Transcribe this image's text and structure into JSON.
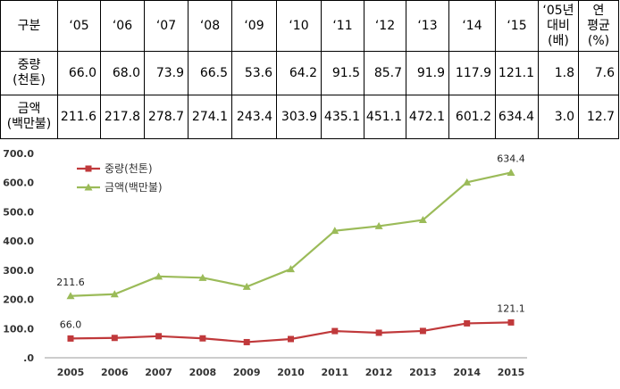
{
  "table": {
    "corner": "구분",
    "columns": [
      "‘05",
      "‘06",
      "‘07",
      "‘08",
      "‘09",
      "‘10",
      "‘11",
      "‘12",
      "‘13",
      "‘14",
      "‘15"
    ],
    "ratio_col": [
      "‘05년",
      "대비",
      "(배)"
    ],
    "growth_col": [
      "연",
      "평균",
      "(%)"
    ],
    "rows": [
      {
        "label": [
          "중량",
          "(천톤)"
        ],
        "values": [
          "66.0",
          "68.0",
          "73.9",
          "66.5",
          "53.6",
          "64.2",
          "91.5",
          "85.7",
          "91.9",
          "117.9",
          "121.1"
        ],
        "ratio": "1.8",
        "growth": "7.6"
      },
      {
        "label": [
          "금액",
          "(백만불)"
        ],
        "values": [
          "211.6",
          "217.8",
          "278.7",
          "274.1",
          "243.4",
          "303.9",
          "435.1",
          "451.1",
          "472.1",
          "601.2",
          "634.4"
        ],
        "ratio": "3.0",
        "growth": "12.7"
      }
    ]
  },
  "chart_data": {
    "type": "line",
    "x": [
      "2005",
      "2006",
      "2007",
      "2008",
      "2009",
      "2010",
      "2011",
      "2012",
      "2013",
      "2014",
      "2015"
    ],
    "ylim": [
      0,
      700
    ],
    "yticks": [
      "700.0",
      "600.0",
      "500.0",
      "400.0",
      "300.0",
      "200.0",
      "100.0",
      ".0"
    ],
    "ytick_values": [
      700,
      600,
      500,
      400,
      300,
      200,
      100,
      0
    ],
    "grid": false,
    "legend_position": "top-left",
    "series": [
      {
        "name": "중량(천톤)",
        "color": "#c0393b",
        "marker": "square",
        "values": [
          66.0,
          68.0,
          73.9,
          66.5,
          53.6,
          64.2,
          91.5,
          85.7,
          91.9,
          117.9,
          121.1
        ]
      },
      {
        "name": "금액(백만불)",
        "color": "#9bbb59",
        "marker": "triangle",
        "values": [
          211.6,
          217.8,
          278.7,
          274.1,
          243.4,
          303.9,
          435.1,
          451.1,
          472.1,
          601.2,
          634.4
        ]
      }
    ],
    "annotations": [
      {
        "series": 0,
        "index": 0,
        "text": "66.0"
      },
      {
        "series": 0,
        "index": 10,
        "text": "121.1"
      },
      {
        "series": 1,
        "index": 0,
        "text": "211.6"
      },
      {
        "series": 1,
        "index": 10,
        "text": "634.4"
      }
    ]
  }
}
